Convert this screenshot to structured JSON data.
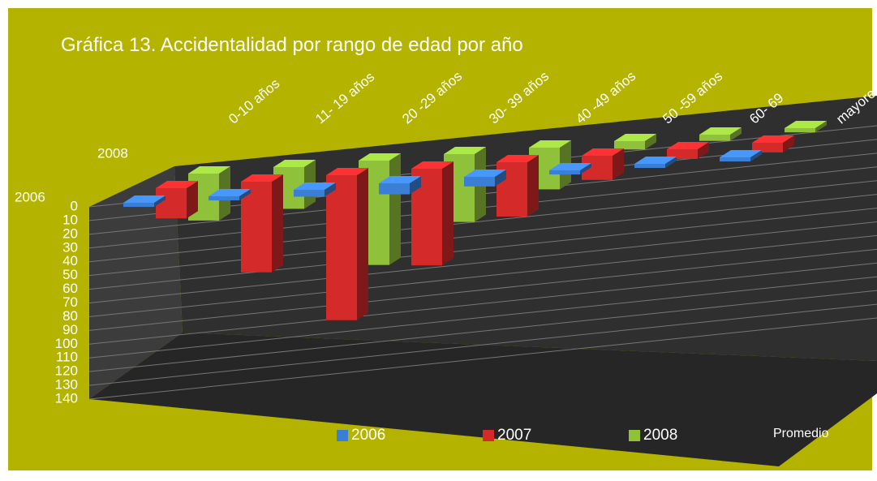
{
  "chart_data": {
    "type": "bar3d",
    "title": "Gráfica 13. Accidentalidad por rango de edad por año",
    "categories": [
      "0-10 años",
      "11- 19 años",
      "20 -29 años",
      "30- 39 años",
      "40 -49 años",
      "50 -59 años",
      "60- 69",
      "mayores"
    ],
    "series": [
      {
        "name": "2006",
        "color": "#3a7fd5",
        "values": [
          3,
          3,
          5,
          8,
          7,
          3,
          3,
          3
        ]
      },
      {
        "name": "2007",
        "color": "#d42a2a",
        "values": [
          25,
          75,
          120,
          80,
          45,
          20,
          8,
          8
        ]
      },
      {
        "name": "2008",
        "color": "#8fc13a",
        "values": [
          45,
          40,
          100,
          65,
          40,
          8,
          6,
          4
        ]
      },
      {
        "name": "Promedio",
        "color": null,
        "values": [
          null,
          null,
          null,
          null,
          null,
          null,
          null,
          null
        ]
      }
    ],
    "ylim": [
      0,
      140
    ],
    "yticks": [
      0,
      10,
      20,
      30,
      40,
      50,
      60,
      70,
      80,
      90,
      100,
      110,
      120,
      130,
      140
    ],
    "y_inverted": true,
    "grid": true
  }
}
